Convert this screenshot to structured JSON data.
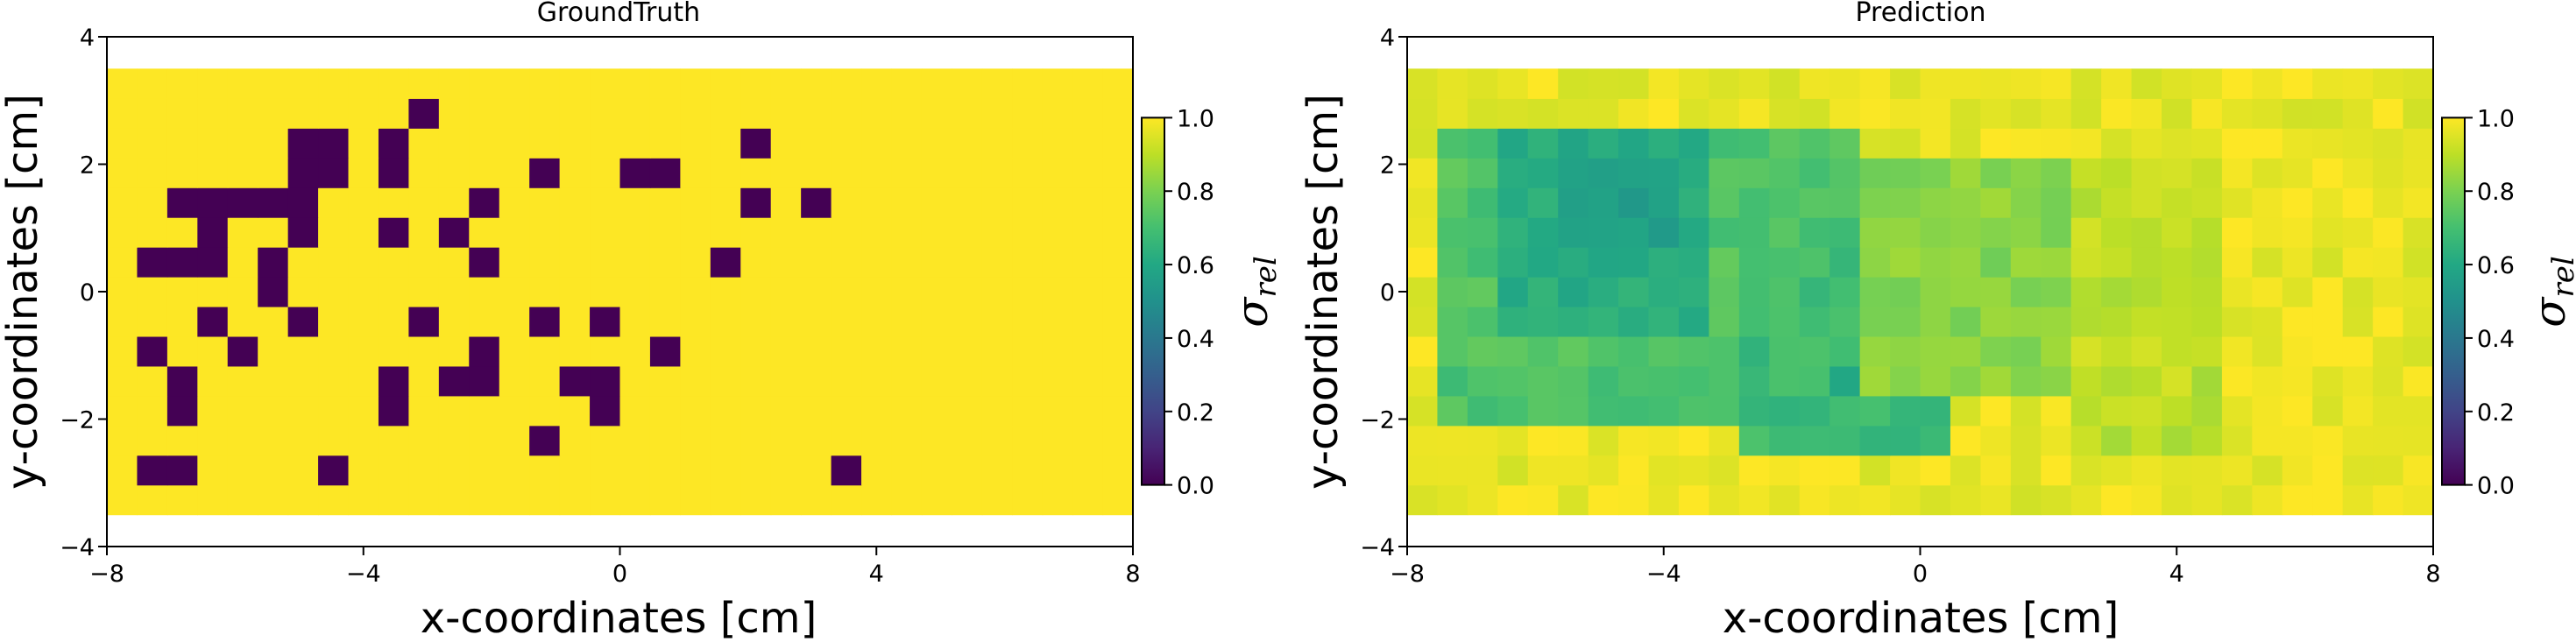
{
  "chart_data": [
    {
      "type": "heatmap",
      "title": "GroundTruth",
      "xlabel": "x-coordinates [cm]",
      "ylabel": "y-coordinates [cm]",
      "colorbar_label": "σ_rel",
      "colorbar_ticks": [
        "0.0",
        "0.2",
        "0.4",
        "0.6",
        "0.8",
        "1.0"
      ],
      "colormap": "viridis",
      "clim": [
        0,
        1
      ],
      "xlim": [
        -8,
        8
      ],
      "ylim": [
        -4,
        4
      ],
      "xticks": [
        -8,
        -4,
        0,
        4,
        8
      ],
      "yticks": [
        -4,
        -2,
        0,
        2,
        4
      ],
      "xtick_labels": [
        "−8",
        "−4",
        "0",
        "4",
        "8"
      ],
      "ytick_labels": [
        "−4",
        "−2",
        "0",
        "2",
        "4"
      ],
      "extent": [
        -8,
        8,
        -3.5,
        3.5
      ],
      "default_value": 1.0,
      "low_value": 0.0,
      "cells_with_value_0": [
        [
          -7.25,
          0.5
        ],
        [
          -6.75,
          0.5
        ],
        [
          -6.25,
          0.5
        ],
        [
          -7.25,
          -0.9
        ],
        [
          -6.75,
          -1.3
        ],
        [
          -6.25,
          -0.5
        ],
        [
          -5.75,
          -0.9
        ],
        [
          -6.75,
          -1.8
        ],
        [
          -5.25,
          0.5
        ],
        [
          -5.25,
          0.1
        ],
        [
          -4.75,
          -0.4
        ],
        [
          -7.25,
          -2.7
        ],
        [
          -6.75,
          -2.7
        ],
        [
          -4.25,
          -2.7
        ],
        [
          -6.75,
          1.4
        ],
        [
          -6.25,
          1.4
        ],
        [
          -5.75,
          1.4
        ],
        [
          -5.25,
          1.4
        ],
        [
          -4.75,
          1.4
        ],
        [
          -6.25,
          1.0
        ],
        [
          -4.75,
          1.0
        ],
        [
          -4.75,
          2.3
        ],
        [
          -4.25,
          2.3
        ],
        [
          -3.75,
          2.3
        ],
        [
          -4.75,
          1.9
        ],
        [
          -4.25,
          1.9
        ],
        [
          -3.75,
          1.9
        ],
        [
          -3.25,
          2.8
        ],
        [
          -3.75,
          0.9
        ],
        [
          -2.75,
          0.9
        ],
        [
          -3.25,
          -0.4
        ],
        [
          -2.25,
          1.4
        ],
        [
          -2.25,
          0.5
        ],
        [
          -3.75,
          -1.3
        ],
        [
          -3.75,
          -1.8
        ],
        [
          -2.75,
          -1.3
        ],
        [
          -2.25,
          -0.9
        ],
        [
          -2.25,
          -1.3
        ],
        [
          -1.25,
          1.9
        ],
        [
          0.25,
          1.9
        ],
        [
          0.75,
          1.9
        ],
        [
          -1.25,
          -0.4
        ],
        [
          -0.25,
          -0.4
        ],
        [
          -0.75,
          -1.3
        ],
        [
          -0.25,
          -1.3
        ],
        [
          -0.25,
          -1.8
        ],
        [
          0.75,
          -0.9
        ],
        [
          -1.25,
          -2.3
        ],
        [
          2.25,
          2.3
        ],
        [
          2.25,
          1.4
        ],
        [
          3.25,
          1.4
        ],
        [
          1.75,
          0.5
        ],
        [
          3.75,
          -2.7
        ]
      ]
    },
    {
      "type": "heatmap",
      "title": "Prediction",
      "xlabel": "x-coordinates [cm]",
      "ylabel": "y-coordinates [cm]",
      "colorbar_label": "σ_rel",
      "colorbar_ticks": [
        "0.0",
        "0.2",
        "0.4",
        "0.6",
        "0.8",
        "1.0"
      ],
      "colormap": "viridis",
      "clim": [
        0,
        1
      ],
      "xlim": [
        -8,
        8
      ],
      "ylim": [
        -4,
        4
      ],
      "xticks": [
        -8,
        -4,
        0,
        4,
        8
      ],
      "yticks": [
        -4,
        -2,
        0,
        2,
        4
      ],
      "xtick_labels": [
        "−8",
        "−4",
        "0",
        "4",
        "8"
      ],
      "ytick_labels": [
        "−4",
        "−2",
        "0",
        "2",
        "4"
      ],
      "extent": [
        -8,
        8,
        -3.5,
        3.5
      ],
      "default_value": 0.97,
      "regions": [
        {
          "x": [
            -7.5,
            -1.0
          ],
          "y": [
            -2.2,
            2.5
          ],
          "value": 0.72
        },
        {
          "x": [
            -6.5,
            -3.5
          ],
          "y": [
            -0.5,
            2.5
          ],
          "value": 0.62
        },
        {
          "x": [
            -5.5,
            -4.0
          ],
          "y": [
            0.5,
            2.0
          ],
          "value": 0.55
        },
        {
          "x": [
            -3.0,
            0.5
          ],
          "y": [
            -2.5,
            0.5
          ],
          "value": 0.68
        },
        {
          "x": [
            -1.5,
            -0.5
          ],
          "y": [
            -1.5,
            -1.0
          ],
          "value": 0.6
        },
        {
          "x": [
            -1.0,
            2.5
          ],
          "y": [
            -1.5,
            2.0
          ],
          "value": 0.82
        },
        {
          "x": [
            2.5,
            4.5
          ],
          "y": [
            -2.5,
            2.0
          ],
          "value": 0.9
        }
      ]
    }
  ]
}
